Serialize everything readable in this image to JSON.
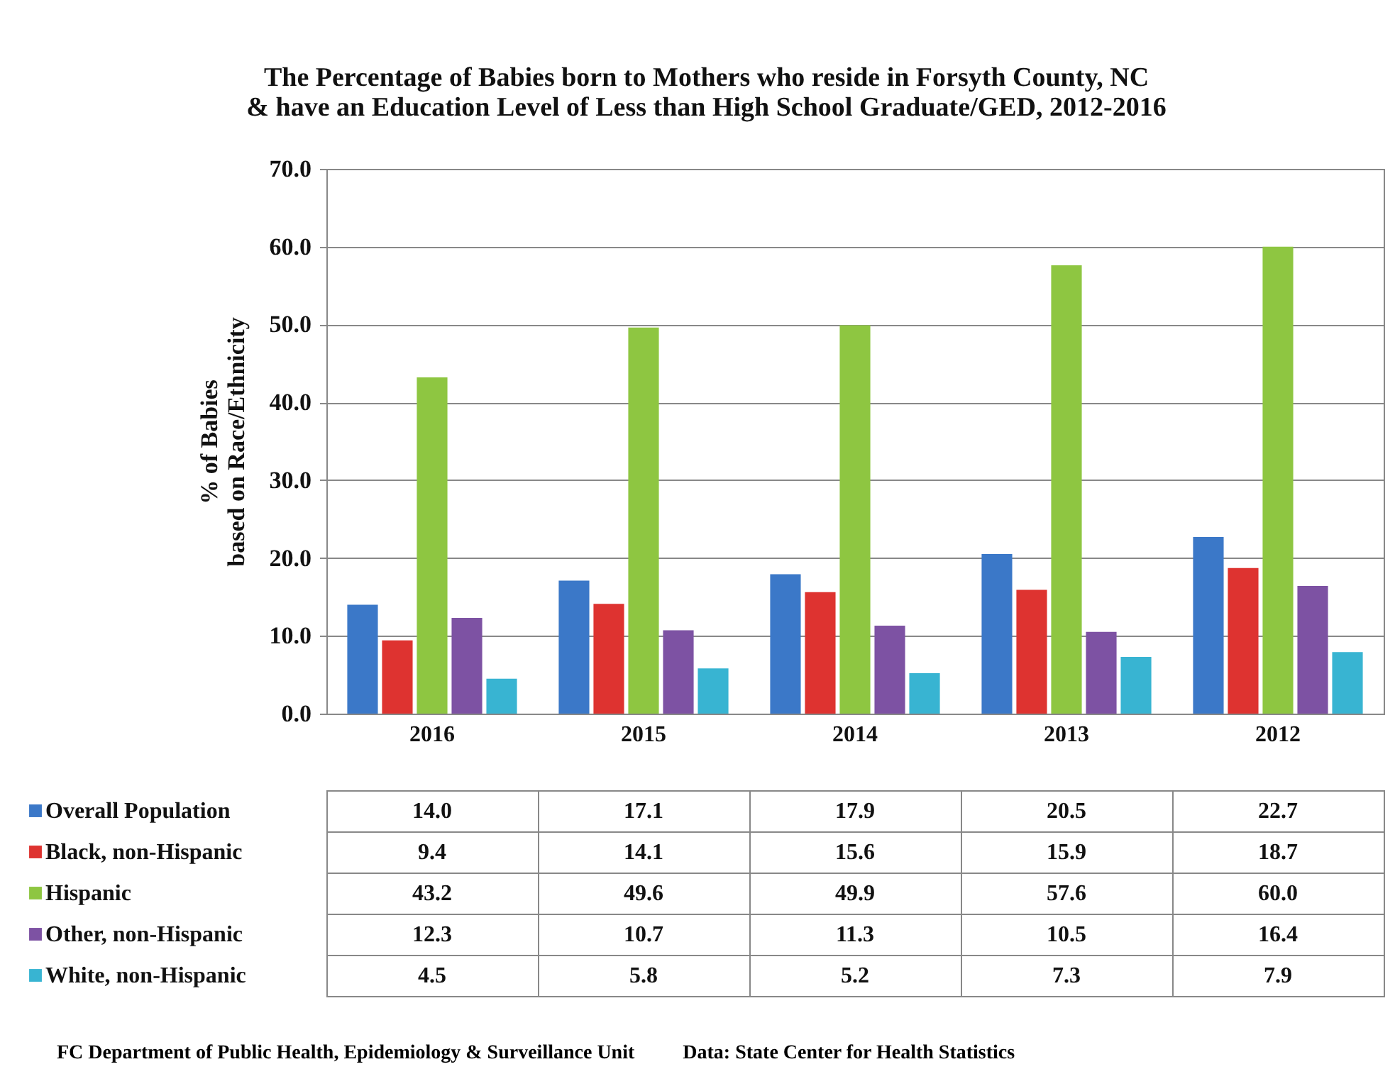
{
  "chart_data": {
    "type": "bar",
    "title": "The Percentage of Babies born to Mothers who reside in Forsyth County, NC\n& have an Education Level of Less than High School Graduate/GED, 2012-2016",
    "ylabel": "% of Babies\nbased on Race/Ethnicity",
    "categories": [
      "2016",
      "2015",
      "2014",
      "2013",
      "2012"
    ],
    "series": [
      {
        "name": "Overall Population",
        "color": "#3b78c8",
        "values": [
          14.0,
          17.1,
          17.9,
          20.5,
          22.7
        ],
        "value_labels": [
          "14.0",
          "17.1",
          "17.9",
          "20.5",
          "22.7"
        ]
      },
      {
        "name": "Black, non-Hispanic",
        "color": "#de3330",
        "values": [
          9.4,
          14.1,
          15.6,
          15.9,
          18.7
        ],
        "value_labels": [
          "9.4",
          "14.1",
          "15.6",
          "15.9",
          "18.7"
        ]
      },
      {
        "name": "Hispanic",
        "color": "#8ec641",
        "values": [
          43.2,
          49.6,
          49.9,
          57.6,
          60.0
        ],
        "value_labels": [
          "43.2",
          "49.6",
          "49.9",
          "57.6",
          "60.0"
        ]
      },
      {
        "name": "Other, non-Hispanic",
        "color": "#7d52a3",
        "values": [
          12.3,
          10.7,
          11.3,
          10.5,
          16.4
        ],
        "value_labels": [
          "12.3",
          "10.7",
          "11.3",
          "10.5",
          "16.4"
        ]
      },
      {
        "name": "White, non-Hispanic",
        "color": "#38b4d2",
        "values": [
          4.5,
          5.8,
          5.2,
          7.3,
          7.9
        ],
        "value_labels": [
          "4.5",
          "5.8",
          "5.2",
          "7.3",
          "7.9"
        ]
      }
    ],
    "ylim": [
      0,
      70
    ],
    "yticks": [
      {
        "value": 0,
        "label": "0.0"
      },
      {
        "value": 10,
        "label": "10.0"
      },
      {
        "value": 20,
        "label": "20.0"
      },
      {
        "value": 30,
        "label": "30.0"
      },
      {
        "value": 40,
        "label": "40.0"
      },
      {
        "value": 50,
        "label": "50.0"
      },
      {
        "value": 60,
        "label": "60.0"
      },
      {
        "value": 70,
        "label": "70.0"
      }
    ],
    "grid": "y",
    "legend": "bottom",
    "annotations": [
      "FC Department of Public Health, Epidemiology & Surveillance Unit",
      "Data: State Center for Health Statistics"
    ]
  }
}
